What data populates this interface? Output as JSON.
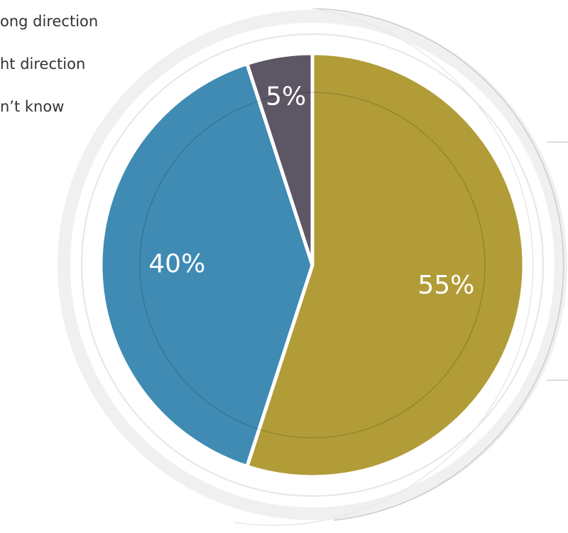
{
  "chart_data": {
    "type": "pie",
    "categories": [
      "ong direction",
      "ht direction",
      "n’t know"
    ],
    "values": [
      55,
      40,
      5
    ],
    "value_labels": [
      "55%",
      "40%",
      "5%"
    ],
    "colors": [
      "#b19c38",
      "#3f8bb3",
      "#5d5664"
    ]
  }
}
